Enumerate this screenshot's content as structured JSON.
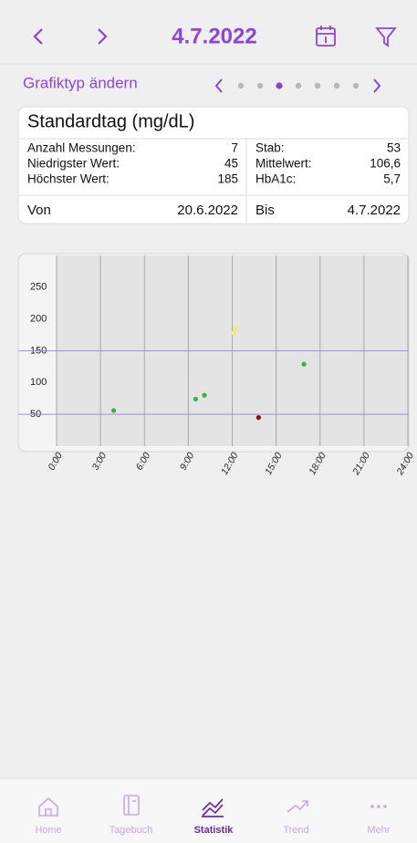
{
  "nav": {
    "date": "4.7.2022"
  },
  "header": {
    "title": "Grafiktyp ändern"
  },
  "card": {
    "title": "Standardtag (mg/dL)",
    "left": [
      {
        "label": "Anzahl Messungen:",
        "value": "7"
      },
      {
        "label": "Niedrigster Wert:",
        "value": "45"
      },
      {
        "label": "Höchster Wert:",
        "value": "185"
      }
    ],
    "right": [
      {
        "label": "Stab:",
        "value": "53"
      },
      {
        "label": "Mittelwert:",
        "value": "106,6"
      },
      {
        "label": "HbA1c:",
        "value": "5,7"
      }
    ],
    "range": {
      "from_label": "Von",
      "from": "20.6.2022",
      "to_label": "Bis",
      "to": "4.7.2022"
    }
  },
  "chart_data": {
    "type": "scatter",
    "x": [
      3.9,
      9.5,
      10.1,
      12.1,
      12.2,
      13.8,
      16.9
    ],
    "series": [
      {
        "values": [
          56,
          74,
          80,
          178,
          185,
          45,
          129
        ],
        "colors": [
          "#3cb043",
          "#3cb043",
          "#3cb043",
          "#f2f27a",
          "#eded66",
          "#8b0a0a",
          "#3cb043"
        ]
      }
    ],
    "xlim": [
      0,
      24
    ],
    "xticks": [
      {
        "value": 0,
        "label": "0:00"
      },
      {
        "value": 3,
        "label": "3:00"
      },
      {
        "value": 6,
        "label": "6:00"
      },
      {
        "value": 9,
        "label": "9:00"
      },
      {
        "value": 12,
        "label": "12:00"
      },
      {
        "value": 15,
        "label": "15:00"
      },
      {
        "value": 18,
        "label": "18:00"
      },
      {
        "value": 21,
        "label": "21:00"
      },
      {
        "value": 24,
        "label": "24:00"
      }
    ],
    "ylim": [
      0,
      300
    ],
    "yticks": [
      50,
      100,
      150,
      200,
      250
    ],
    "target_lines": [
      50,
      150
    ],
    "target_color": "#9a8fe0",
    "grid": true
  },
  "tabs": [
    {
      "label": "Home"
    },
    {
      "label": "Tagebuch"
    },
    {
      "label": "Statistik"
    },
    {
      "label": "Trend"
    },
    {
      "label": "Mehr"
    }
  ]
}
